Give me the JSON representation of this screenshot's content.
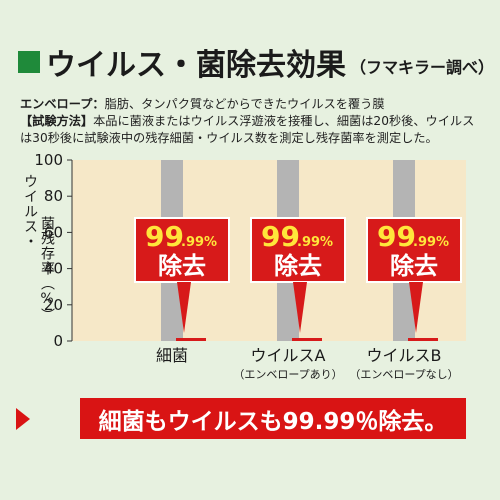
{
  "header": {
    "title": "ウイルス・菌除去効果",
    "subtitle": "（フマキラー調べ）"
  },
  "info": {
    "line1_label": "エンベロープ：",
    "line1_text": "脂肪、タンパク質などからできたウイルスを覆う膜",
    "line2_label": "【試験方法】",
    "line2_text": "本品に菌液またはウイルス浮遊液を接種し、細菌は20秒後、ウイルスは30秒後に試験液中の残存細菌・ウイルス数を測定し残存菌率を測定した。"
  },
  "chart_data": {
    "type": "bar",
    "ylabel": "ウイルス・菌残存率（%）",
    "ylim": [
      0,
      100
    ],
    "yticks": [
      0,
      20,
      40,
      60,
      80,
      100
    ],
    "categories": [
      "細菌",
      "ウイルスA",
      "ウイルスB"
    ],
    "category_subtitles": [
      "",
      "（エンベロープあり）",
      "（エンベロープなし）"
    ],
    "series": [
      {
        "values": [
          100,
          100,
          100
        ]
      },
      {
        "values": [
          0.01,
          0.01,
          0.01
        ]
      }
    ],
    "annotations": [
      {
        "main": "99",
        "small": ".99%",
        "sub": "除去"
      },
      {
        "main": "99",
        "small": ".99%",
        "sub": "除去"
      },
      {
        "main": "99",
        "small": ".99%",
        "sub": "除去"
      }
    ],
    "colors": {
      "before_bar": "#b4b4b4",
      "after_bar": "#d71a1a",
      "plot_bg": "#f6e8c8",
      "annotation_red": "#d71a1a",
      "annotation_yellow": "#ffe63b"
    }
  },
  "banner": {
    "text": "細菌もウイルスも99.99％除去。"
  }
}
